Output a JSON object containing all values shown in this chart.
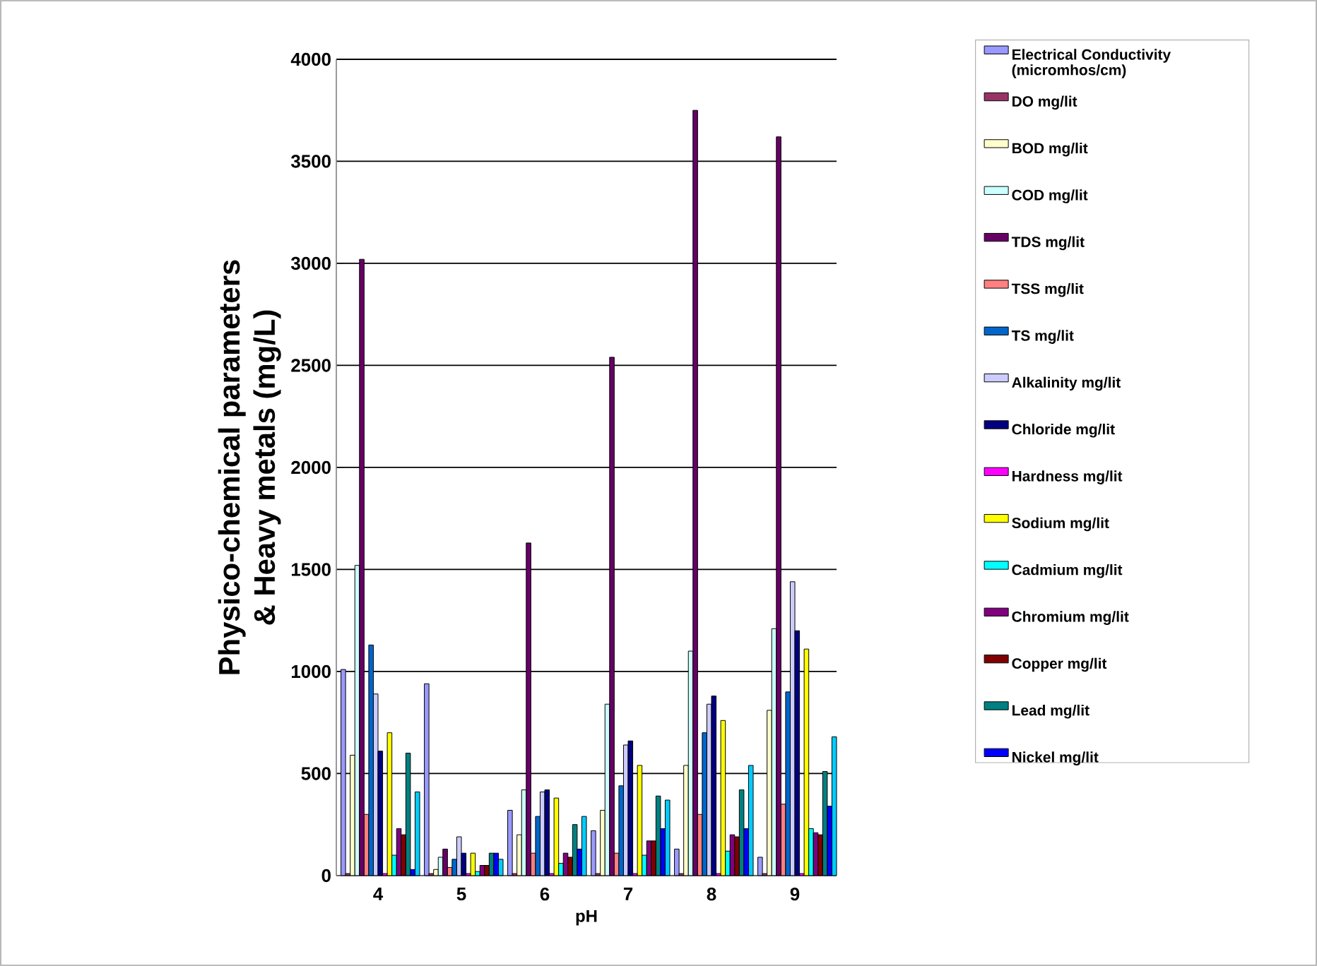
{
  "chart_data": {
    "type": "bar",
    "xlabel": "pH",
    "ylabel": "Physico-chemical parameters & Heavy metals (mg/L)",
    "categories": [
      "4",
      "5",
      "6",
      "7",
      "8",
      "9"
    ],
    "ylim": [
      0,
      4000
    ],
    "yticks": [
      0,
      500,
      1000,
      1500,
      2000,
      2500,
      3000,
      3500,
      4000
    ],
    "grid": "y",
    "legend": "right",
    "series": [
      {
        "name": "Electrical Conductivity (micromhos/cm)",
        "color": "#9999ff",
        "values": [
          1010,
          940,
          320,
          220,
          130,
          90
        ]
      },
      {
        "name": "DO mg/lit",
        "color": "#993366",
        "values": [
          10,
          10,
          10,
          10,
          10,
          10
        ]
      },
      {
        "name": "BOD mg/lit",
        "color": "#ffffcc",
        "values": [
          590,
          30,
          200,
          320,
          540,
          810
        ]
      },
      {
        "name": "COD mg/lit",
        "color": "#ccffff",
        "values": [
          1520,
          90,
          420,
          840,
          1100,
          1210
        ]
      },
      {
        "name": "TDS mg/lit",
        "color": "#660066",
        "values": [
          3020,
          130,
          1630,
          2540,
          3750,
          3620
        ]
      },
      {
        "name": "TSS mg/lit",
        "color": "#ff8080",
        "values": [
          300,
          40,
          110,
          110,
          300,
          350
        ]
      },
      {
        "name": "TS mg/lit",
        "color": "#0066cc",
        "values": [
          1130,
          80,
          290,
          440,
          700,
          900
        ]
      },
      {
        "name": "Alkalinity mg/lit",
        "color": "#ccccff",
        "values": [
          890,
          190,
          410,
          640,
          840,
          1440
        ]
      },
      {
        "name": "Chloride mg/lit",
        "color": "#000080",
        "values": [
          610,
          110,
          420,
          660,
          880,
          1200
        ]
      },
      {
        "name": "Hardness mg/lit",
        "color": "#ff00ff",
        "values": [
          10,
          10,
          10,
          10,
          10,
          10
        ]
      },
      {
        "name": "Sodium mg/lit",
        "color": "#ffff00",
        "values": [
          700,
          110,
          380,
          540,
          760,
          1110
        ]
      },
      {
        "name": "Cadmium mg/lit",
        "color": "#00ffff",
        "values": [
          100,
          20,
          60,
          100,
          120,
          230
        ]
      },
      {
        "name": "Chromium mg/lit",
        "color": "#800080",
        "values": [
          230,
          50,
          110,
          170,
          200,
          210
        ]
      },
      {
        "name": "Copper mg/lit",
        "color": "#800000",
        "values": [
          200,
          50,
          90,
          170,
          190,
          200
        ]
      },
      {
        "name": "Lead mg/lit",
        "color": "#008080",
        "values": [
          600,
          110,
          250,
          390,
          420,
          510
        ]
      },
      {
        "name": "Nickel mg/lit",
        "color": "#0000ff",
        "values": [
          30,
          110,
          130,
          230,
          230,
          340
        ]
      },
      {
        "color": "#00ccff",
        "values": [
          410,
          80,
          290,
          370,
          540,
          680
        ]
      }
    ]
  }
}
